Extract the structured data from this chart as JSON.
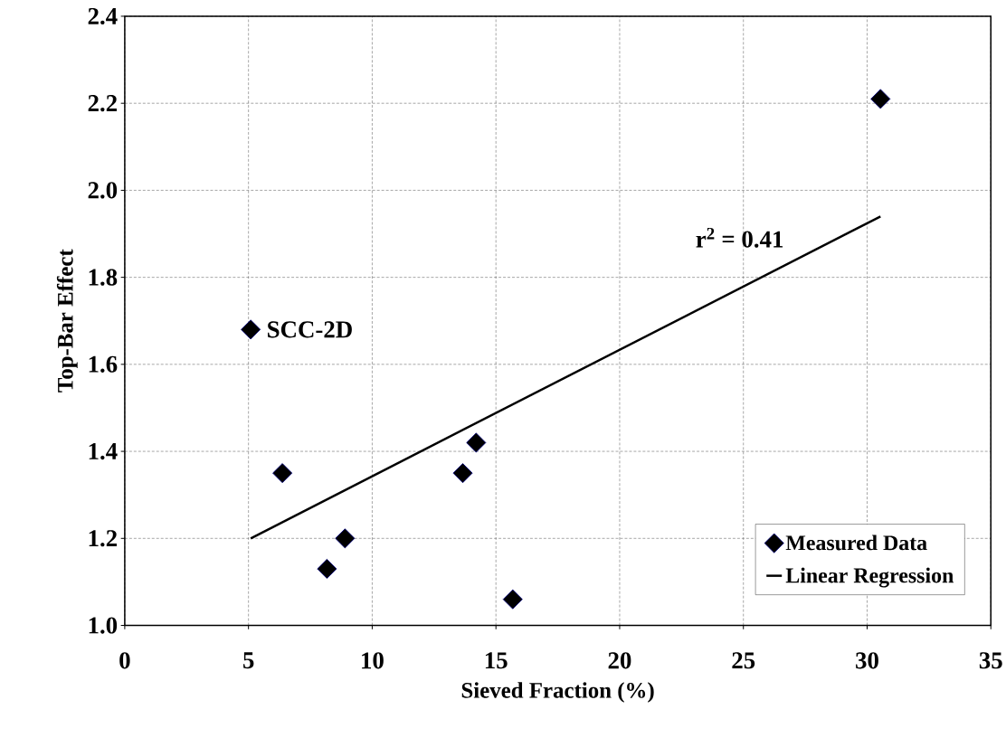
{
  "chart_data": {
    "type": "scatter",
    "xlabel": "Sieved Fraction (%)",
    "ylabel": "Top-Bar Effect",
    "xlim": [
      0,
      35
    ],
    "xticks": [
      0,
      5,
      10,
      15,
      20,
      25,
      30,
      35
    ],
    "ylim": [
      1.0,
      2.4
    ],
    "yticks": [
      {
        "value": 1.0,
        "label": "1.0"
      },
      {
        "value": 1.2,
        "label": "1.2"
      },
      {
        "value": 1.4,
        "label": "1.4"
      },
      {
        "value": 1.6,
        "label": "1.6"
      },
      {
        "value": 1.8,
        "label": "1.8"
      },
      {
        "value": 2.0,
        "label": "2.0"
      },
      {
        "value": 2.2,
        "label": "2.2"
      },
      {
        "value": 2.4,
        "label": "2.4"
      }
    ],
    "grid": true,
    "legend": "bottom right",
    "series": [
      {
        "name": "Measured Data",
        "type": "scatter",
        "color": "#000000",
        "marker": "diamond",
        "x": [
          5.09,
          6.37,
          8.17,
          8.9,
          13.66,
          14.2,
          15.68,
          30.54
        ],
        "values": [
          1.68,
          1.35,
          1.13,
          1.2,
          1.35,
          1.42,
          1.06,
          2.21
        ]
      },
      {
        "name": "Linear Regression",
        "type": "line",
        "color": "#000000",
        "marker": "none",
        "line_style": "solid",
        "x": [
          5.09,
          30.54
        ],
        "values": [
          1.2,
          1.94
        ]
      }
    ],
    "annotations": [
      {
        "text": "SCC-2D",
        "x": 5.09,
        "y": 1.68
      },
      "r$^{2}$ = 0.41"
    ]
  }
}
